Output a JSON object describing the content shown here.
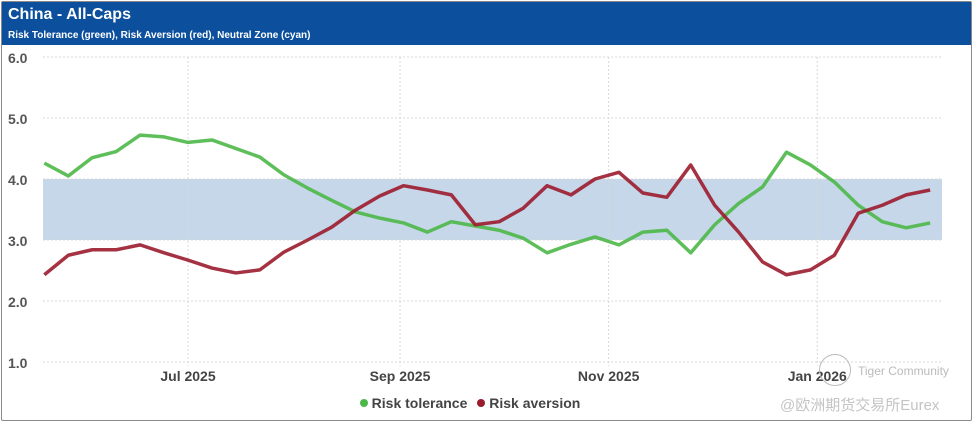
{
  "header": {
    "title": "China - All-Caps",
    "subtitle": "Risk Tolerance (green), Risk Aversion (red), Neutral Zone (cyan)",
    "background": "#0b4f9d"
  },
  "watermark": {
    "line1": "Tiger Community",
    "line2": "@欧洲期货交易所Eurex"
  },
  "chart_data": {
    "type": "line",
    "title": "China - All-Caps",
    "subtitle": "Risk Tolerance (green), Risk Aversion (red), Neutral Zone (cyan)",
    "start_date": "2025-05-20",
    "interval_days": 7,
    "ylim": [
      1.0,
      6.0
    ],
    "y_ticks": [
      "1.0",
      "2.0",
      "3.0",
      "4.0",
      "5.0",
      "6.0"
    ],
    "y_tick_values": [
      1,
      2,
      3,
      4,
      5,
      6
    ],
    "x_ticks": [
      {
        "label": "Jul 2025",
        "date": "2025-07-01"
      },
      {
        "label": "Sep 2025",
        "date": "2025-09-01"
      },
      {
        "label": "Nov 2025",
        "date": "2025-11-01"
      },
      {
        "label": "Jan 2026",
        "date": "2026-01-01"
      }
    ],
    "x_range": [
      "2025-05-20",
      "2026-02-13"
    ],
    "neutral_zone": {
      "low": 3.0,
      "high": 4.0,
      "color": "#bfd3e6"
    },
    "grid": true,
    "legend_position": "bottom",
    "series": [
      {
        "name": "Risk tolerance",
        "color": "#4cb848",
        "values": [
          4.26,
          4.05,
          4.35,
          4.45,
          4.72,
          4.69,
          4.6,
          4.64,
          4.5,
          4.36,
          4.07,
          3.85,
          3.65,
          3.46,
          3.36,
          3.28,
          3.13,
          3.3,
          3.23,
          3.16,
          3.03,
          2.79,
          2.93,
          3.05,
          2.92,
          3.13,
          3.16,
          2.79,
          3.25,
          3.6,
          3.87,
          4.44,
          4.23,
          3.95,
          3.57,
          3.3,
          3.2,
          3.28
        ]
      },
      {
        "name": "Risk aversion",
        "color": "#9b1c2e",
        "values": [
          2.43,
          2.75,
          2.84,
          2.84,
          2.92,
          2.79,
          2.67,
          2.54,
          2.46,
          2.51,
          2.8,
          3.0,
          3.21,
          3.49,
          3.72,
          3.89,
          3.82,
          3.74,
          3.25,
          3.3,
          3.52,
          3.89,
          3.74,
          4.0,
          4.11,
          3.77,
          3.7,
          4.23,
          3.57,
          3.13,
          2.64,
          2.43,
          2.51,
          2.75,
          3.44,
          3.57,
          3.74,
          3.82
        ]
      }
    ]
  }
}
